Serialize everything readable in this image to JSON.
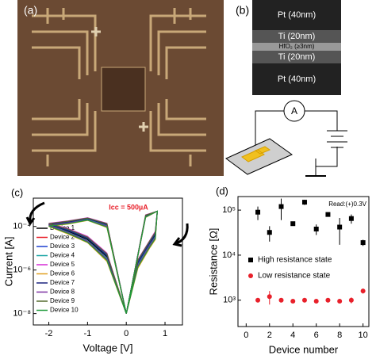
{
  "panels": {
    "a_label": "(a)",
    "b_label": "(b)",
    "layers": [
      "Pt (40nm)",
      "Ti (20nm)",
      "HfO₂ (≥3nm)",
      "Ti (20nm)",
      "Pt (40nm)"
    ],
    "ammeter": "A"
  },
  "chart_data": [
    {
      "type": "line",
      "panel_label": "(c)",
      "annotation": "Icc = 500µA",
      "x_label": "Voltage [V]",
      "y_label": "Current [A]",
      "log_y": true,
      "xlim": [
        -2.4,
        1.45
      ],
      "xticks": [
        -2,
        -1,
        0,
        1
      ],
      "ylim": [
        3e-09,
        0.002
      ],
      "yticks": [
        {
          "value": 0.0001,
          "label": "10⁻⁴"
        },
        {
          "value": 1e-06,
          "label": "10⁻⁶"
        },
        {
          "value": 1e-08,
          "label": "10⁻⁸"
        }
      ],
      "x": [
        0,
        0.3,
        0.6,
        0.75,
        0.8,
        0.5,
        0,
        -0.5,
        -1,
        -1.5,
        -2,
        -1.5,
        -1,
        -0.5,
        0
      ],
      "series": [
        {
          "name": "Device 1",
          "color": "#000000",
          "values": [
            1e-08,
            2e-06,
            1.5e-05,
            4e-05,
            0.0005,
            0.0003,
            1e-08,
            0.00012,
            0.00022,
            0.00015,
            0.00012,
            6e-05,
            2.5e-05,
            4e-06,
            1e-08
          ]
        },
        {
          "name": "Device 2",
          "color": "#e8202a",
          "values": [
            1e-08,
            1.5e-06,
            1.2e-05,
            3e-05,
            0.0005,
            0.00028,
            1e-08,
            0.0001,
            0.0002,
            0.00014,
            0.00011,
            5e-05,
            2e-05,
            3e-06,
            1e-08
          ]
        },
        {
          "name": "Device 3",
          "color": "#1c3fd0",
          "values": [
            1e-08,
            2.5e-06,
            2e-05,
            5e-05,
            0.0005,
            0.00032,
            1e-08,
            0.00013,
            0.00024,
            0.00017,
            0.00013,
            7e-05,
            3e-05,
            5e-06,
            1e-08
          ]
        },
        {
          "name": "Device 4",
          "color": "#1aa5a5",
          "values": [
            1e-08,
            1.8e-06,
            1.4e-05,
            3.5e-05,
            0.0005,
            0.00029,
            1e-08,
            0.00011,
            0.00021,
            0.00015,
            0.00012,
            5.5e-05,
            2.2e-05,
            3.5e-06,
            1e-08
          ]
        },
        {
          "name": "Device 5",
          "color": "#d62ad6",
          "values": [
            1e-08,
            3e-06,
            2.2e-05,
            6e-05,
            0.0005,
            0.00034,
            1e-08,
            0.00014,
            0.00025,
            0.00018,
            0.00014,
            8e-05,
            3.5e-05,
            6e-06,
            1e-08
          ]
        },
        {
          "name": "Device 6",
          "color": "#e0a020",
          "values": [
            1e-08,
            1.2e-06,
            1e-05,
            2.5e-05,
            0.0005,
            0.00026,
            1e-08,
            9e-05,
            0.00019,
            0.00013,
            0.0001,
            4.5e-05,
            1.8e-05,
            2.5e-06,
            1e-08
          ]
        },
        {
          "name": "Device 7",
          "color": "#1a237e",
          "values": [
            1e-08,
            2.2e-06,
            1.7e-05,
            4.5e-05,
            0.0005,
            0.00031,
            1e-08,
            0.000125,
            0.00023,
            0.00016,
            0.000125,
            6.5e-05,
            2.8e-05,
            4.5e-06,
            1e-08
          ]
        },
        {
          "name": "Device 8",
          "color": "#7b2fa0",
          "values": [
            1e-08,
            1.6e-06,
            1.3e-05,
            3.2e-05,
            0.0005,
            0.00027,
            1e-08,
            0.000105,
            0.0002,
            0.000145,
            0.000115,
            5.2e-05,
            2.1e-05,
            3.2e-06,
            1e-08
          ]
        },
        {
          "name": "Device 9",
          "color": "#556b2f",
          "values": [
            1e-08,
            2.8e-06,
            2.1e-05,
            5.5e-05,
            0.0005,
            0.00033,
            1e-08,
            0.000135,
            0.000245,
            0.000175,
            0.000135,
            7.5e-05,
            3.2e-05,
            5.5e-06,
            1e-08
          ]
        },
        {
          "name": "Device 10",
          "color": "#1f9a3a",
          "values": [
            1e-08,
            1.4e-06,
            1.1e-05,
            2.8e-05,
            0.0005,
            0.00027,
            1e-08,
            9.5e-05,
            0.000195,
            0.000135,
            0.000105,
            4.8e-05,
            1.9e-05,
            2.8e-06,
            1e-08
          ]
        }
      ]
    },
    {
      "type": "scatter",
      "panel_label": "(d)",
      "annotation": "Read:(+)0.3V",
      "x_label": "Device number",
      "y_label": "Resistance [Ω]",
      "log_y": true,
      "xlim": [
        -0.7,
        10.5
      ],
      "xticks": [
        0,
        2,
        4,
        6,
        8,
        10
      ],
      "ylim": [
        260,
        200000
      ],
      "yticks": [
        {
          "value": 1000,
          "label": "10³"
        },
        {
          "value": 10000,
          "label": "10⁴"
        },
        {
          "value": 100000,
          "label": "10⁵"
        }
      ],
      "x": [
        1,
        2,
        3,
        4,
        5,
        6,
        7,
        8,
        9,
        10
      ],
      "series": [
        {
          "name": "High resistance state",
          "color": "#000000",
          "marker": "square",
          "values": [
            90000,
            32000,
            120000,
            50000,
            150000,
            38000,
            80000,
            42000,
            65000,
            19000
          ],
          "errors": [
            30000,
            12000,
            60000,
            5000,
            20000,
            10000,
            8000,
            25000,
            15000,
            3000
          ]
        },
        {
          "name": "Low resistance state",
          "color": "#e8202a",
          "marker": "circle",
          "values": [
            1000,
            1200,
            1000,
            950,
            1000,
            950,
            1000,
            950,
            1000,
            1600
          ],
          "errors": [
            100,
            400,
            100,
            50,
            100,
            50,
            80,
            50,
            150,
            200
          ]
        }
      ]
    }
  ]
}
